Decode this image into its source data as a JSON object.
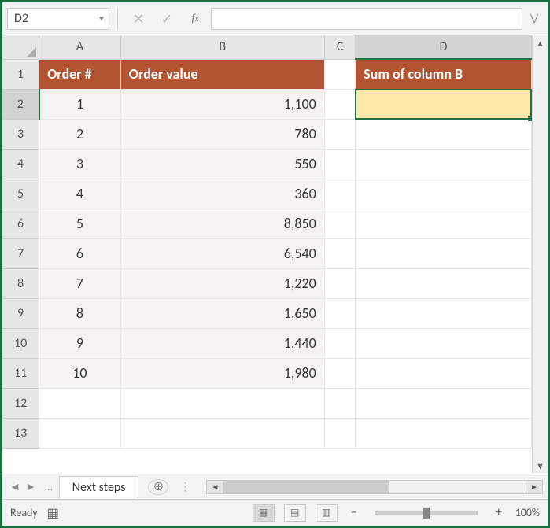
{
  "namebox": {
    "value": "D2"
  },
  "formula": {
    "value": ""
  },
  "columns": [
    "A",
    "B",
    "C",
    "D"
  ],
  "active_column_index": 3,
  "active_row_index": 1,
  "row_count": 13,
  "headers": {
    "A": "Order #",
    "B": "Order value",
    "D": "Sum of column B"
  },
  "data": {
    "orders": [
      {
        "num": "1",
        "value": "1,100"
      },
      {
        "num": "2",
        "value": "780"
      },
      {
        "num": "3",
        "value": "550"
      },
      {
        "num": "4",
        "value": "360"
      },
      {
        "num": "5",
        "value": "8,850"
      },
      {
        "num": "6",
        "value": "6,540"
      },
      {
        "num": "7",
        "value": "1,220"
      },
      {
        "num": "8",
        "value": "1,650"
      },
      {
        "num": "9",
        "value": "1,440"
      },
      {
        "num": "10",
        "value": "1,980"
      }
    ]
  },
  "selected_cell": {
    "row": 2,
    "col": "D",
    "value": ""
  },
  "colors": {
    "header_bg": "#b25432",
    "header_fg": "#ffffff",
    "selected_bg": "#ffe9a8",
    "selection_border": "#217346",
    "stripe_bg": "#f5f2f2",
    "app_border": "#1d6f42"
  },
  "tabs": {
    "active": "Next steps"
  },
  "status": {
    "text": "Ready",
    "zoom": "100%"
  }
}
